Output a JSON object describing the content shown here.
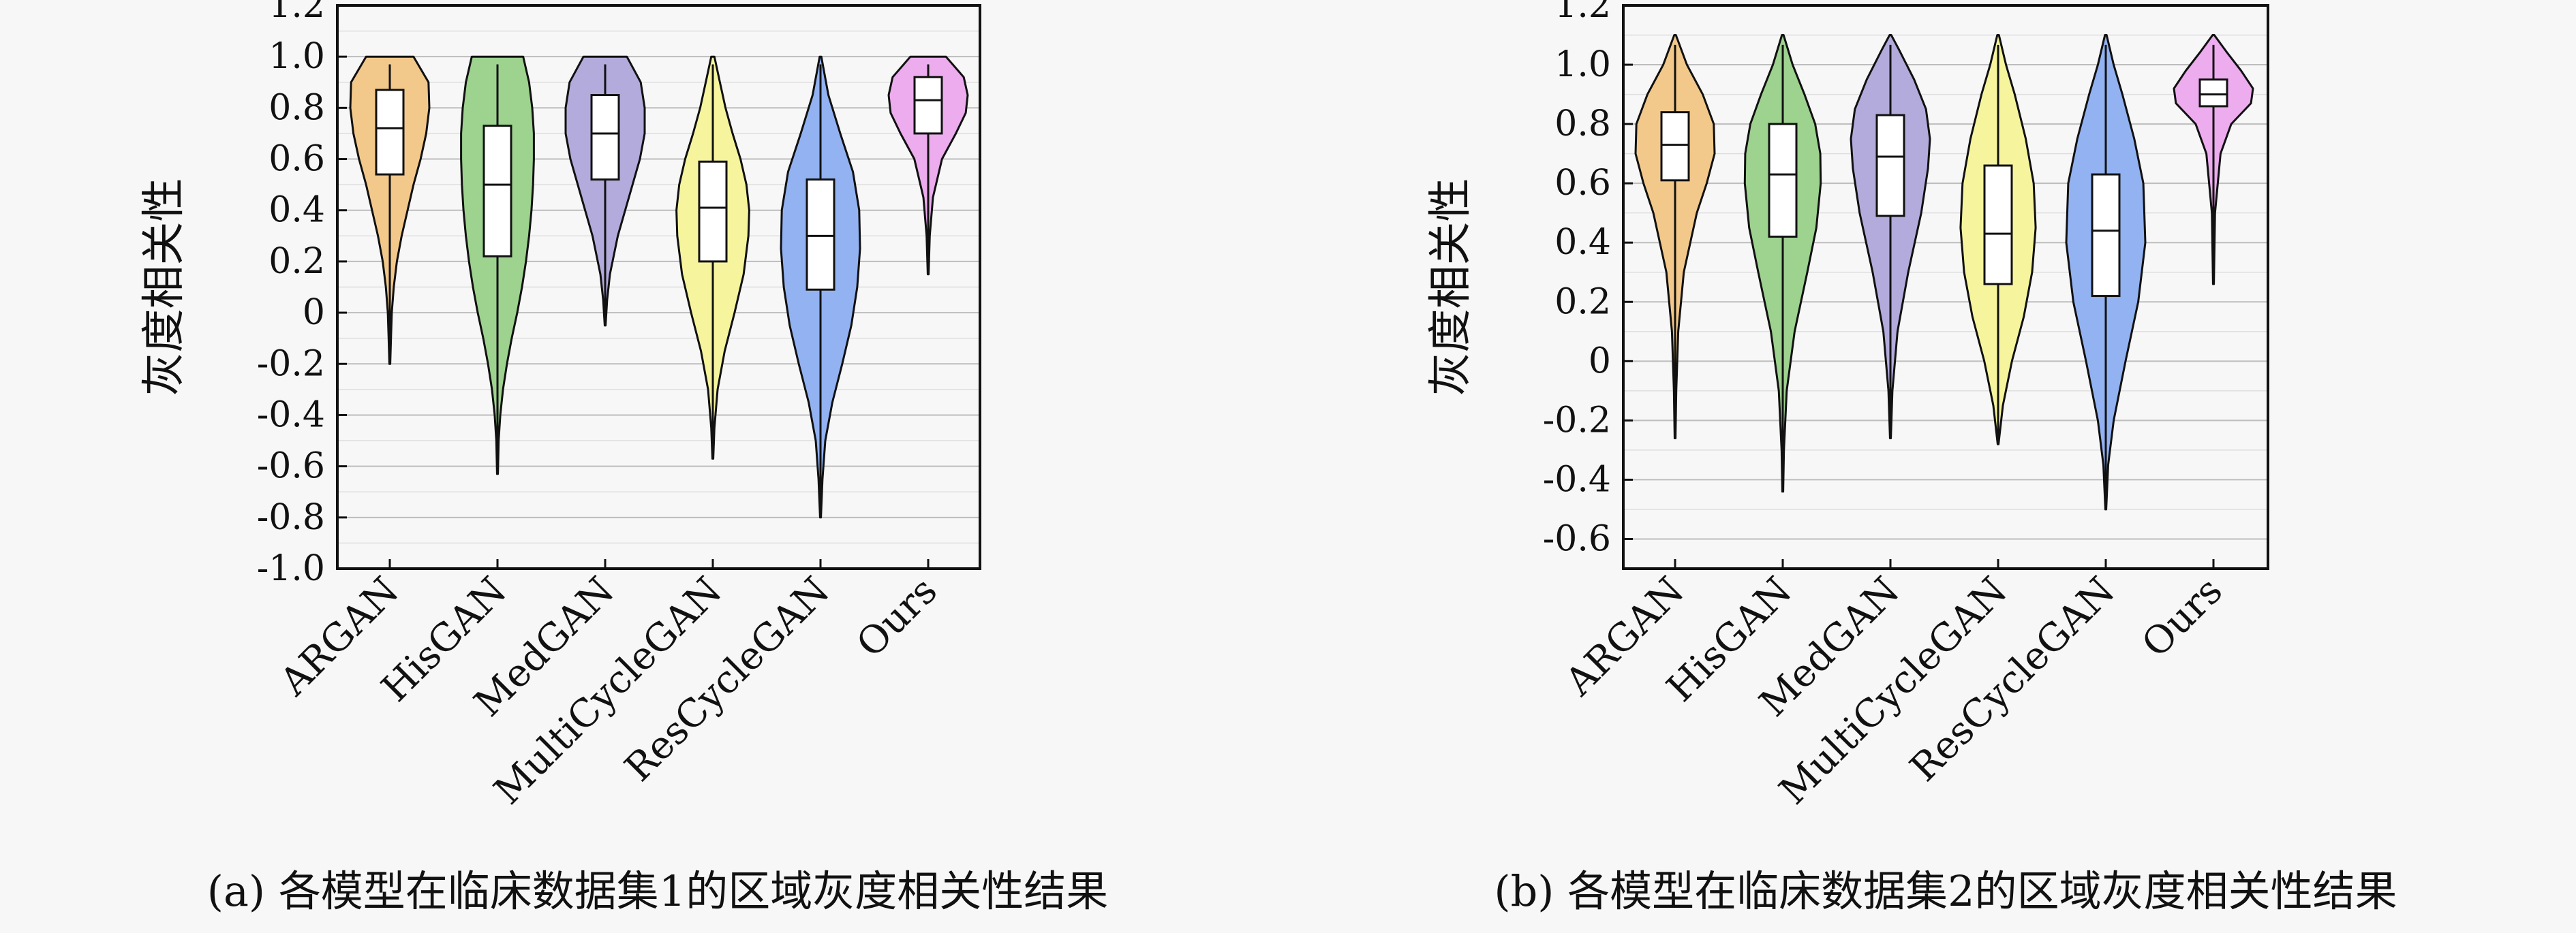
{
  "chart_data": [
    {
      "type": "violin",
      "caption": "(a) 各模型在临床数据集1的区域灰度相关性结果",
      "ylabel": "灰度相关性",
      "ylim": [
        -1.0,
        1.2
      ],
      "yticks": [
        -1.0,
        -0.8,
        -0.6,
        -0.4,
        -0.2,
        0,
        0.2,
        0.4,
        0.6,
        0.8,
        1.0,
        1.2
      ],
      "ytick_labels": [
        "-1.0",
        "-0.8",
        "-0.6",
        "-0.4",
        "-0.2",
        "0",
        "0.2",
        "0.4",
        "0.6",
        "0.8",
        "1.0",
        "1.2"
      ],
      "grid": true,
      "categories": [
        "ARGAN",
        "HisGAN",
        "MedGAN",
        "MultiCycleGAN",
        "ResCycleGAN",
        "Ours"
      ],
      "series": [
        {
          "name": "ARGAN",
          "color": "#f2c98a",
          "min": -0.2,
          "q1": 0.54,
          "median": 0.72,
          "q3": 0.87,
          "max": 1.0,
          "density": [
            [
              -0.2,
              0.01
            ],
            [
              -0.1,
              0.03
            ],
            [
              0,
              0.05
            ],
            [
              0.1,
              0.1
            ],
            [
              0.2,
              0.18
            ],
            [
              0.3,
              0.3
            ],
            [
              0.4,
              0.45
            ],
            [
              0.5,
              0.6
            ],
            [
              0.6,
              0.78
            ],
            [
              0.7,
              0.92
            ],
            [
              0.8,
              1.0
            ],
            [
              0.9,
              0.98
            ],
            [
              1.0,
              0.6
            ]
          ]
        },
        {
          "name": "HisGAN",
          "color": "#9dd28f",
          "min": -0.63,
          "q1": 0.22,
          "median": 0.5,
          "q3": 0.73,
          "max": 1.0,
          "density": [
            [
              -0.63,
              0.01
            ],
            [
              -0.5,
              0.03
            ],
            [
              -0.4,
              0.07
            ],
            [
              -0.3,
              0.14
            ],
            [
              -0.2,
              0.24
            ],
            [
              -0.1,
              0.36
            ],
            [
              0,
              0.5
            ],
            [
              0.1,
              0.62
            ],
            [
              0.2,
              0.72
            ],
            [
              0.3,
              0.8
            ],
            [
              0.4,
              0.86
            ],
            [
              0.5,
              0.9
            ],
            [
              0.6,
              0.92
            ],
            [
              0.7,
              0.92
            ],
            [
              0.8,
              0.88
            ],
            [
              0.9,
              0.8
            ],
            [
              1.0,
              0.65
            ]
          ]
        },
        {
          "name": "MedGAN",
          "color": "#b3abdc",
          "min": -0.05,
          "q1": 0.52,
          "median": 0.7,
          "q3": 0.85,
          "max": 1.0,
          "density": [
            [
              -0.05,
              0.01
            ],
            [
              0.05,
              0.05
            ],
            [
              0.15,
              0.12
            ],
            [
              0.3,
              0.32
            ],
            [
              0.45,
              0.6
            ],
            [
              0.6,
              0.88
            ],
            [
              0.7,
              1.0
            ],
            [
              0.8,
              1.0
            ],
            [
              0.9,
              0.9
            ],
            [
              1.0,
              0.55
            ]
          ]
        },
        {
          "name": "MultiCycleGAN",
          "color": "#f6f59e",
          "min": -0.57,
          "q1": 0.2,
          "median": 0.41,
          "q3": 0.59,
          "max": 1.0,
          "density": [
            [
              -0.57,
              0.01
            ],
            [
              -0.45,
              0.04
            ],
            [
              -0.3,
              0.12
            ],
            [
              -0.15,
              0.3
            ],
            [
              0,
              0.55
            ],
            [
              0.15,
              0.78
            ],
            [
              0.3,
              0.9
            ],
            [
              0.4,
              0.92
            ],
            [
              0.5,
              0.85
            ],
            [
              0.6,
              0.7
            ],
            [
              0.7,
              0.5
            ],
            [
              0.8,
              0.32
            ],
            [
              0.9,
              0.18
            ],
            [
              1.0,
              0.04
            ]
          ]
        },
        {
          "name": "ResCycleGAN",
          "color": "#92b2f2",
          "min": -0.8,
          "q1": 0.09,
          "median": 0.3,
          "q3": 0.52,
          "max": 1.0,
          "density": [
            [
              -0.8,
              0.01
            ],
            [
              -0.65,
              0.05
            ],
            [
              -0.5,
              0.12
            ],
            [
              -0.35,
              0.3
            ],
            [
              -0.2,
              0.55
            ],
            [
              -0.05,
              0.78
            ],
            [
              0.1,
              0.93
            ],
            [
              0.25,
              1.0
            ],
            [
              0.4,
              0.98
            ],
            [
              0.55,
              0.82
            ],
            [
              0.7,
              0.5
            ],
            [
              0.85,
              0.2
            ],
            [
              1.0,
              0.02
            ]
          ]
        },
        {
          "name": "Ours",
          "color": "#ecacee",
          "min": 0.15,
          "q1": 0.7,
          "median": 0.83,
          "q3": 0.92,
          "max": 1.0,
          "density": [
            [
              0.15,
              0.01
            ],
            [
              0.3,
              0.04
            ],
            [
              0.45,
              0.12
            ],
            [
              0.6,
              0.35
            ],
            [
              0.7,
              0.7
            ],
            [
              0.78,
              0.95
            ],
            [
              0.85,
              1.0
            ],
            [
              0.92,
              0.9
            ],
            [
              1.0,
              0.45
            ]
          ]
        }
      ]
    },
    {
      "type": "violin",
      "caption": "(b) 各模型在临床数据集2的区域灰度相关性结果",
      "ylabel": "灰度相关性",
      "ylim": [
        -0.7,
        1.2
      ],
      "yticks": [
        -0.6,
        -0.4,
        -0.2,
        0,
        0.2,
        0.4,
        0.6,
        0.8,
        1.0,
        1.2
      ],
      "ytick_labels": [
        "-0.6",
        "-0.4",
        "-0.2",
        "0",
        "0.2",
        "0.4",
        "0.6",
        "0.8",
        "1.0",
        "1.2"
      ],
      "grid": true,
      "categories": [
        "ARGAN",
        "HisGAN",
        "MedGAN",
        "MultiCycleGAN",
        "ResCycleGAN",
        "Ours"
      ],
      "series": [
        {
          "name": "ARGAN",
          "color": "#f2c98a",
          "min": -0.26,
          "q1": 0.61,
          "median": 0.73,
          "q3": 0.84,
          "max": 1.1,
          "density": [
            [
              -0.26,
              0.01
            ],
            [
              -0.1,
              0.03
            ],
            [
              0.1,
              0.08
            ],
            [
              0.3,
              0.22
            ],
            [
              0.5,
              0.55
            ],
            [
              0.6,
              0.8
            ],
            [
              0.7,
              1.0
            ],
            [
              0.8,
              0.98
            ],
            [
              0.9,
              0.7
            ],
            [
              1.0,
              0.3
            ],
            [
              1.1,
              0.02
            ]
          ]
        },
        {
          "name": "HisGAN",
          "color": "#9dd28f",
          "min": -0.44,
          "q1": 0.42,
          "median": 0.63,
          "q3": 0.8,
          "max": 1.1,
          "density": [
            [
              -0.44,
              0.01
            ],
            [
              -0.3,
              0.03
            ],
            [
              -0.1,
              0.1
            ],
            [
              0.1,
              0.3
            ],
            [
              0.3,
              0.62
            ],
            [
              0.45,
              0.85
            ],
            [
              0.6,
              0.96
            ],
            [
              0.7,
              0.95
            ],
            [
              0.8,
              0.82
            ],
            [
              0.9,
              0.55
            ],
            [
              1.0,
              0.25
            ],
            [
              1.1,
              0.02
            ]
          ]
        },
        {
          "name": "MedGAN",
          "color": "#b3abdc",
          "min": -0.26,
          "q1": 0.49,
          "median": 0.69,
          "q3": 0.83,
          "max": 1.1,
          "density": [
            [
              -0.26,
              0.01
            ],
            [
              -0.1,
              0.05
            ],
            [
              0.1,
              0.18
            ],
            [
              0.3,
              0.45
            ],
            [
              0.5,
              0.78
            ],
            [
              0.65,
              0.95
            ],
            [
              0.75,
              1.0
            ],
            [
              0.85,
              0.9
            ],
            [
              0.95,
              0.6
            ],
            [
              1.05,
              0.22
            ],
            [
              1.1,
              0.02
            ]
          ]
        },
        {
          "name": "MultiCycleGAN",
          "color": "#f6f59e",
          "min": -0.28,
          "q1": 0.26,
          "median": 0.43,
          "q3": 0.66,
          "max": 1.1,
          "density": [
            [
              -0.28,
              0.01
            ],
            [
              -0.15,
              0.12
            ],
            [
              0,
              0.35
            ],
            [
              0.15,
              0.65
            ],
            [
              0.3,
              0.86
            ],
            [
              0.45,
              0.95
            ],
            [
              0.6,
              0.9
            ],
            [
              0.75,
              0.7
            ],
            [
              0.9,
              0.42
            ],
            [
              1.0,
              0.2
            ],
            [
              1.1,
              0.02
            ]
          ]
        },
        {
          "name": "ResCycleGAN",
          "color": "#92b2f2",
          "min": -0.5,
          "q1": 0.22,
          "median": 0.44,
          "q3": 0.63,
          "max": 1.1,
          "density": [
            [
              -0.5,
              0.01
            ],
            [
              -0.35,
              0.06
            ],
            [
              -0.2,
              0.2
            ],
            [
              0,
              0.5
            ],
            [
              0.2,
              0.82
            ],
            [
              0.4,
              1.0
            ],
            [
              0.6,
              0.95
            ],
            [
              0.75,
              0.72
            ],
            [
              0.9,
              0.42
            ],
            [
              1.0,
              0.2
            ],
            [
              1.1,
              0.02
            ]
          ]
        },
        {
          "name": "Ours",
          "color": "#ecacee",
          "min": 0.26,
          "q1": 0.86,
          "median": 0.9,
          "q3": 0.95,
          "max": 1.1,
          "density": [
            [
              0.26,
              0.01
            ],
            [
              0.5,
              0.04
            ],
            [
              0.7,
              0.18
            ],
            [
              0.8,
              0.45
            ],
            [
              0.87,
              0.95
            ],
            [
              0.92,
              1.0
            ],
            [
              0.98,
              0.7
            ],
            [
              1.04,
              0.35
            ],
            [
              1.1,
              0.02
            ]
          ]
        }
      ]
    }
  ]
}
